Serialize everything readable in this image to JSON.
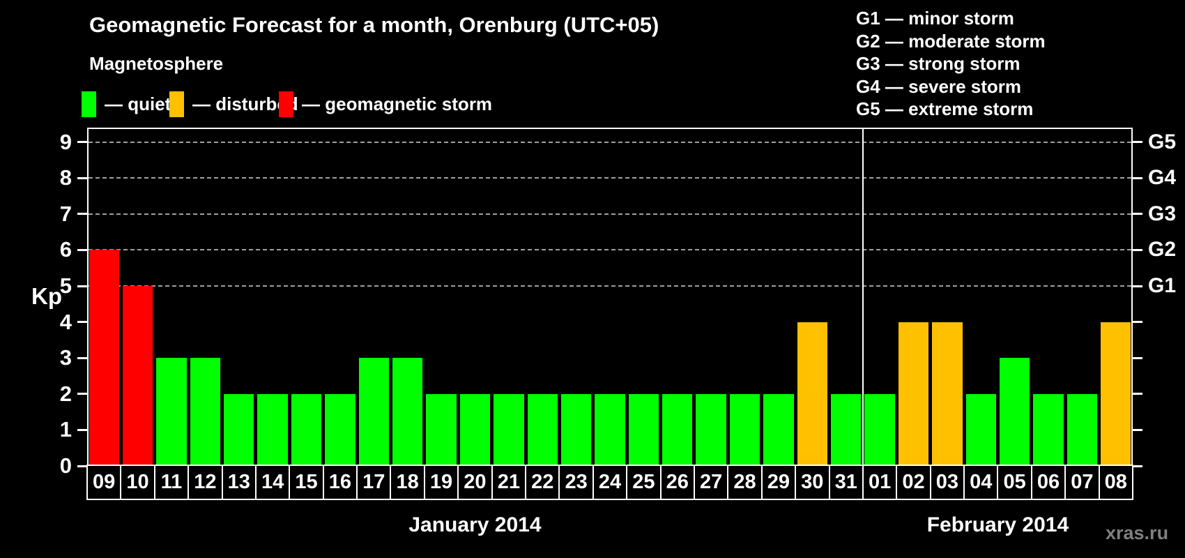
{
  "title": "Geomagnetic Forecast for a month, Orenburg (UTC+05)",
  "subtitle": "Magnetosphere",
  "watermark": "xras.ru",
  "colors": {
    "quiet": "#00FF00",
    "disturbed": "#FFC000",
    "storm": "#FF0000",
    "grid": "#A0A0A0",
    "axis": "#FFFFFF",
    "background": "#000000",
    "watermark": "#808080"
  },
  "legend": {
    "items": [
      {
        "key": "quiet",
        "label": "— quiet",
        "color": "#00FF00"
      },
      {
        "key": "disturbed",
        "label": "— disturbed",
        "color": "#FFC000"
      },
      {
        "key": "storm",
        "label": "— geomagnetic storm",
        "color": "#FF0000"
      }
    ]
  },
  "g_legend": [
    "G1 — minor storm",
    "G2 — moderate storm",
    "G3 — strong storm",
    "G4 — severe storm",
    "G5 — extreme storm"
  ],
  "chart_data": {
    "type": "bar",
    "title": "Geomagnetic Forecast for a month, Orenburg (UTC+05)",
    "xlabel": "",
    "ylabel": "Kp",
    "ylim": [
      0,
      9.4
    ],
    "yticks": [
      0,
      1,
      2,
      3,
      4,
      5,
      6,
      7,
      8,
      9
    ],
    "gridlines_at": [
      5,
      6,
      7,
      8,
      9
    ],
    "grid": "dashed horizontal at Kp 5-9 only",
    "legend_position": "top",
    "right_axis_labels": [
      {
        "kp": 5,
        "label": "G1"
      },
      {
        "kp": 6,
        "label": "G2"
      },
      {
        "kp": 7,
        "label": "G3"
      },
      {
        "kp": 8,
        "label": "G4"
      },
      {
        "kp": 9,
        "label": "G5"
      }
    ],
    "categories": [
      "09",
      "10",
      "11",
      "12",
      "13",
      "14",
      "15",
      "16",
      "17",
      "18",
      "19",
      "20",
      "21",
      "22",
      "23",
      "24",
      "25",
      "26",
      "27",
      "28",
      "29",
      "30",
      "31",
      "01",
      "02",
      "03",
      "04",
      "05",
      "06",
      "07",
      "08"
    ],
    "values": [
      6,
      5,
      3,
      3,
      2,
      2,
      2,
      2,
      3,
      3,
      2,
      2,
      2,
      2,
      2,
      2,
      2,
      2,
      2,
      2,
      2,
      4,
      2,
      2,
      4,
      4,
      2,
      3,
      2,
      2,
      4
    ],
    "statuses": [
      "storm",
      "storm",
      "quiet",
      "quiet",
      "quiet",
      "quiet",
      "quiet",
      "quiet",
      "quiet",
      "quiet",
      "quiet",
      "quiet",
      "quiet",
      "quiet",
      "quiet",
      "quiet",
      "quiet",
      "quiet",
      "quiet",
      "quiet",
      "quiet",
      "disturbed",
      "quiet",
      "quiet",
      "disturbed",
      "disturbed",
      "quiet",
      "quiet",
      "quiet",
      "quiet",
      "disturbed"
    ],
    "separator_after_index": 22,
    "months": [
      {
        "label": "January 2014",
        "start_index": 0,
        "end_index": 22
      },
      {
        "label": "February 2014",
        "start_index": 23,
        "end_index": 30
      }
    ]
  }
}
